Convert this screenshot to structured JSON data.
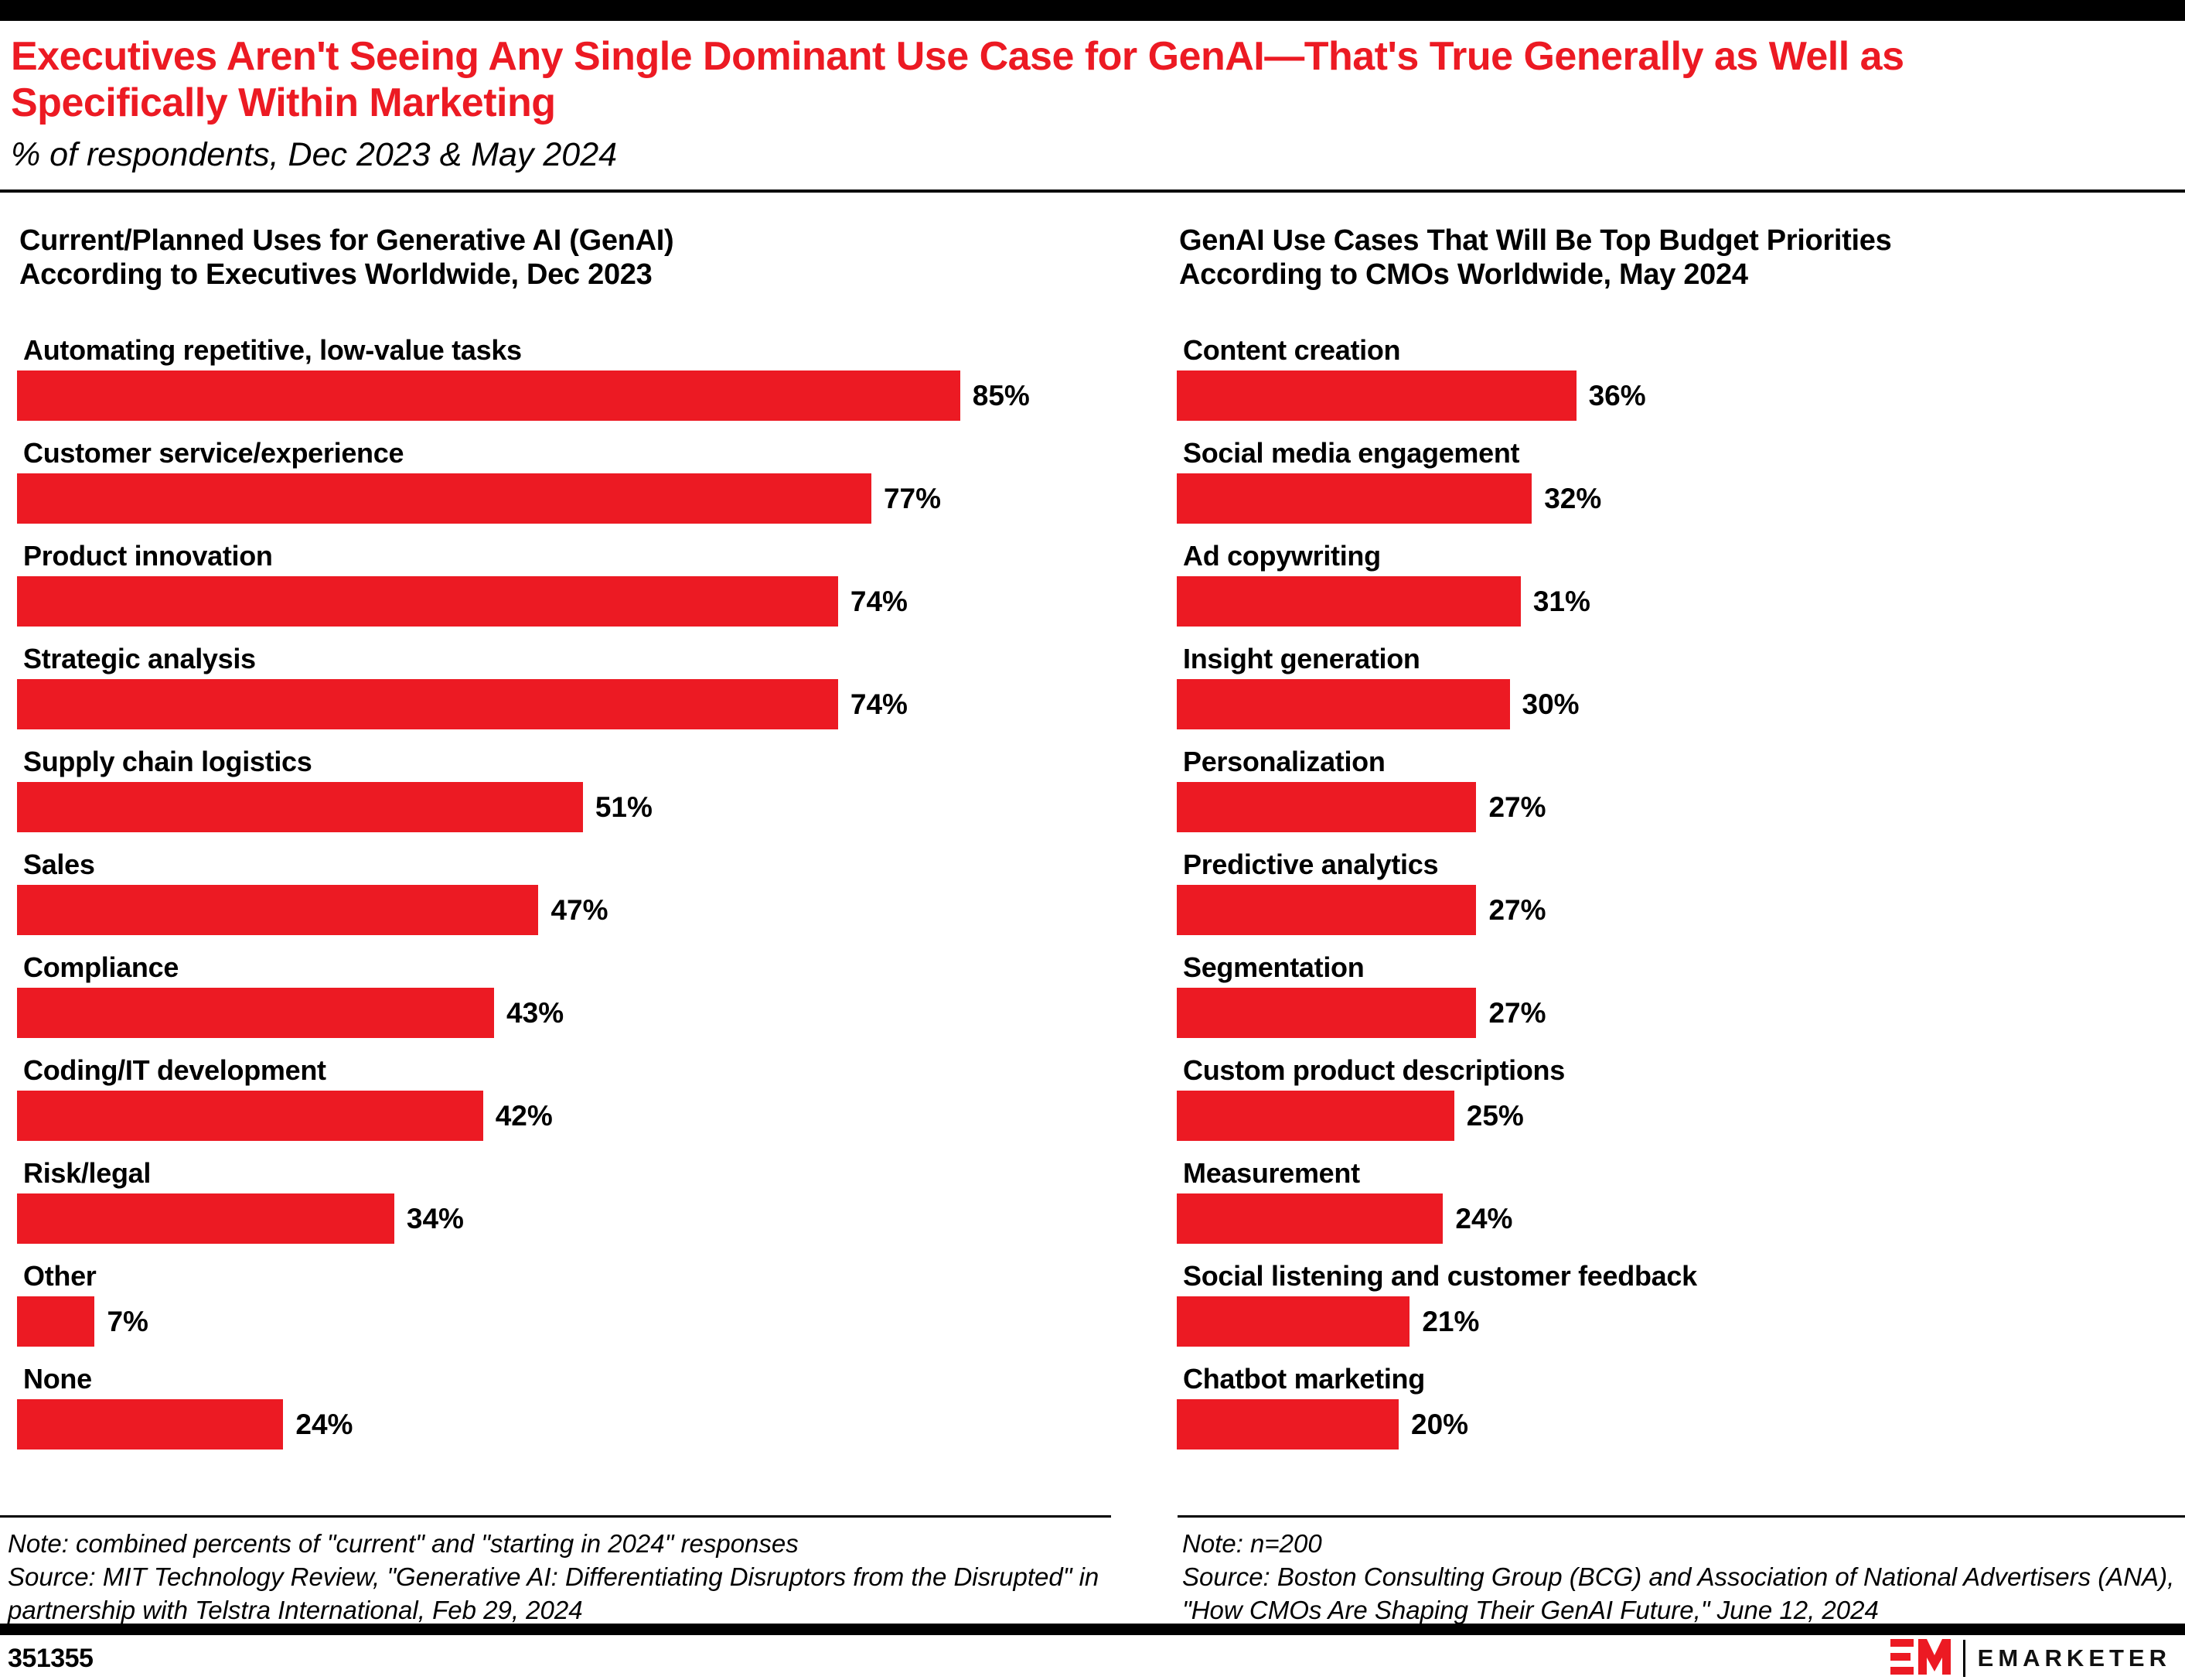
{
  "header": {
    "title": "Executives Aren't Seeing Any Single Dominant Use Case for GenAI—That's True Generally as Well as Specifically Within Marketing",
    "subtitle": "% of respondents, Dec 2023 & May 2024"
  },
  "colors": {
    "accent_red": "#EC1A23",
    "text_black": "#000000"
  },
  "chart_data": [
    {
      "type": "bar",
      "orientation": "horizontal",
      "title": "Current/Planned Uses for Generative AI (GenAI) According to Executives Worldwide, Dec 2023",
      "unit": "%",
      "xlim": [
        0,
        100
      ],
      "grid": false,
      "legend": "none",
      "categories": [
        "Automating repetitive, low-value tasks",
        "Customer service/experience",
        "Product innovation",
        "Strategic analysis",
        "Supply chain logistics",
        "Sales",
        "Compliance",
        "Coding/IT development",
        "Risk/legal",
        "Other",
        "None"
      ],
      "values": [
        85,
        77,
        74,
        74,
        51,
        47,
        43,
        42,
        34,
        7,
        24
      ],
      "note": "Note: combined percents of \"current\" and \"starting in 2024\" responses",
      "source": "Source: MIT Technology Review, \"Generative AI: Differentiating Disruptors from the Disrupted\" in partnership with Telstra International, Feb 29, 2024"
    },
    {
      "type": "bar",
      "orientation": "horizontal",
      "title": "GenAI Use Cases That Will Be Top Budget Priorities According to CMOs Worldwide, May 2024",
      "unit": "%",
      "xlim": [
        0,
        100
      ],
      "grid": false,
      "legend": "none",
      "categories": [
        "Content creation",
        "Social media engagement",
        "Ad copywriting",
        "Insight generation",
        "Personalization",
        "Predictive analytics",
        "Segmentation",
        "Custom product descriptions",
        "Measurement",
        "Social listening and customer feedback",
        "Chatbot marketing"
      ],
      "values": [
        36,
        32,
        31,
        30,
        27,
        27,
        27,
        25,
        24,
        21,
        20
      ],
      "note": "Note: n=200",
      "source": "Source: Boston Consulting Group (BCG) and Association of National Advertisers (ANA), \"How CMOs Are Shaping Their GenAI Future,\" June 12, 2024"
    }
  ],
  "footer": {
    "chart_id": "351355",
    "logo_mark": "EM",
    "logo_text": "EMARKETER"
  }
}
